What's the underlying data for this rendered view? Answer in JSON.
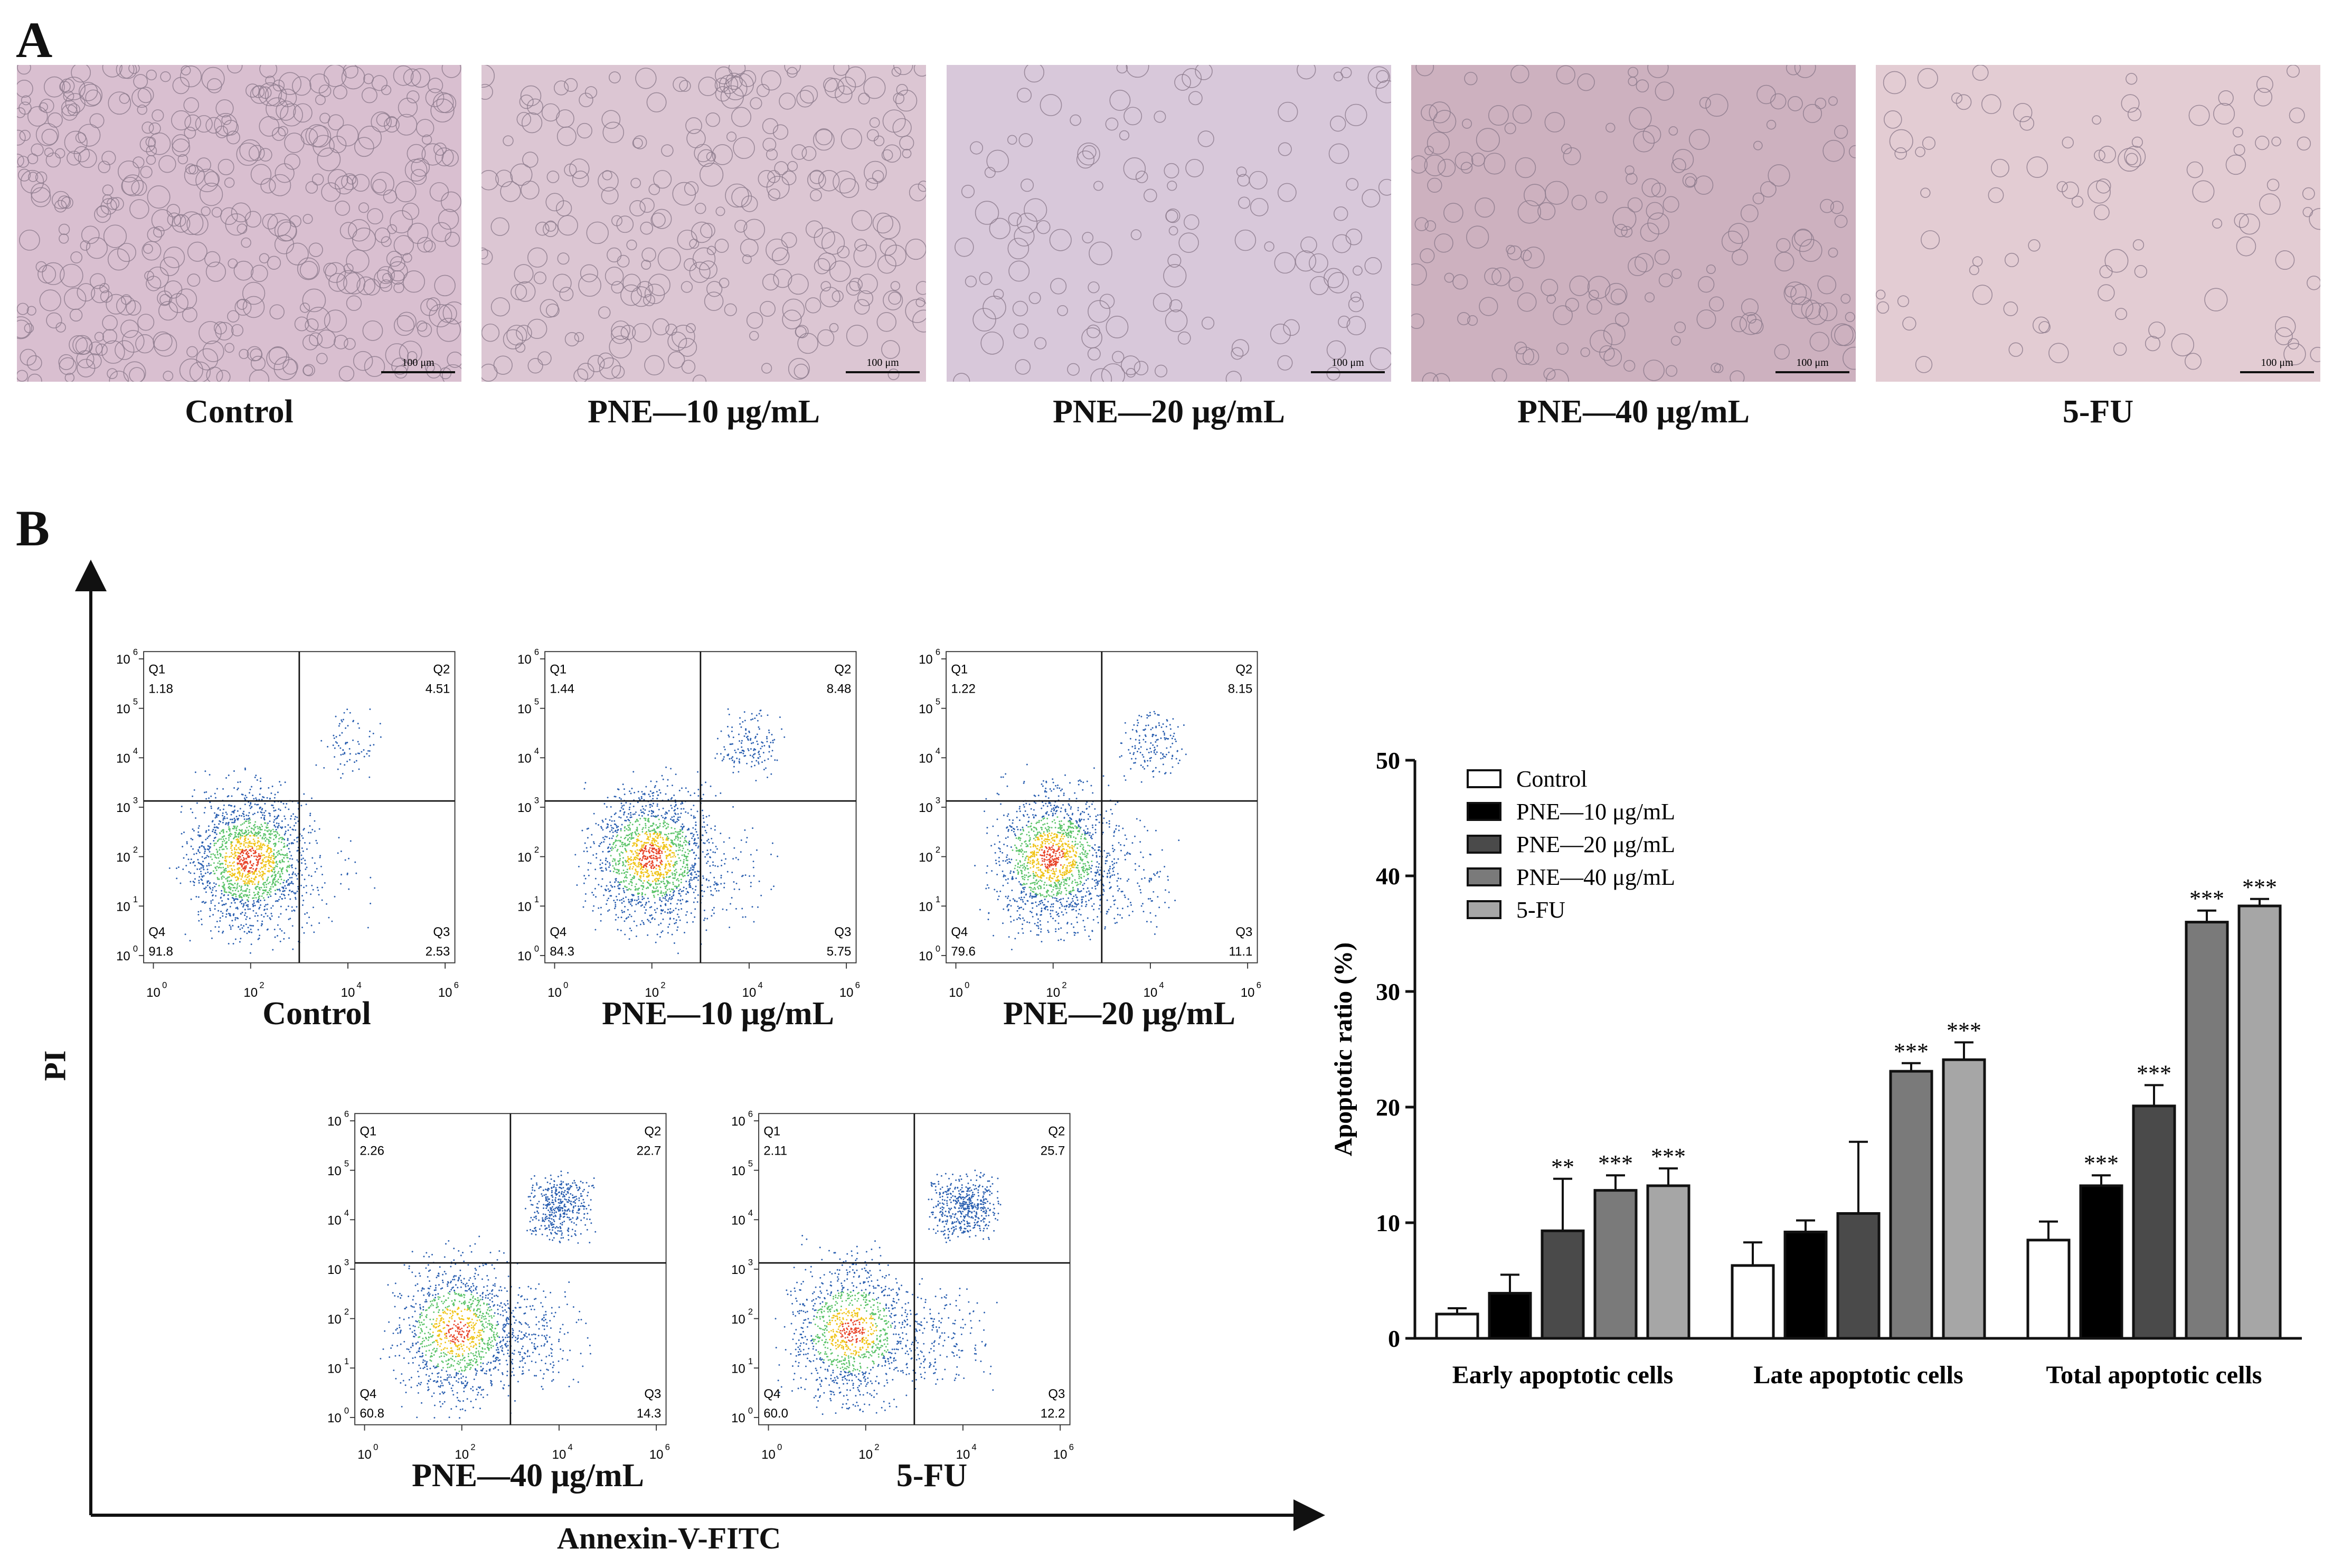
{
  "panels": {
    "a": "A",
    "b": "B"
  },
  "micrographs": [
    {
      "label": "Control",
      "scale_bar": "100 μm",
      "density": 0.95
    },
    {
      "label": "PNE—10 μg/mL",
      "scale_bar": "100 μm",
      "density": 0.6
    },
    {
      "label": "PNE—20 μg/mL",
      "scale_bar": "100 μm",
      "density": 0.25
    },
    {
      "label": "PNE—40 μg/mL",
      "scale_bar": "100 μm",
      "density": 0.35
    },
    {
      "label": "5-FU",
      "scale_bar": "100 μm",
      "density": 0.15
    }
  ],
  "flow_axes": {
    "x_title": "Annexin-V-FITC",
    "y_title": "PI"
  },
  "flow_plots": [
    {
      "label": "Control",
      "q1": "1.18",
      "q2": "4.51",
      "q3": "2.53",
      "q4": "91.8"
    },
    {
      "label": "PNE—10 μg/mL",
      "q1": "1.44",
      "q2": "8.48",
      "q3": "5.75",
      "q4": "84.3"
    },
    {
      "label": "PNE—20 μg/mL",
      "q1": "1.22",
      "q2": "8.15",
      "q3": "11.1",
      "q4": "79.6"
    },
    {
      "label": "PNE—40 μg/mL",
      "q1": "2.26",
      "q2": "22.7",
      "q3": "14.3",
      "q4": "60.8"
    },
    {
      "label": "5-FU",
      "q1": "2.11",
      "q2": "25.7",
      "q3": "12.2",
      "q4": "60.0"
    }
  ],
  "quadrant_names": [
    "Q1",
    "Q2",
    "Q3",
    "Q4"
  ],
  "flow_ticks": [
    "10",
    "10",
    "10",
    "10"
  ],
  "flow_tick_exp": [
    "0",
    "2",
    "4",
    "6"
  ],
  "flow_y_ticks_exp": [
    "0",
    "1",
    "2",
    "3",
    "4",
    "5",
    "6"
  ],
  "chart_data": {
    "type": "bar",
    "categories": [
      "Early apoptotic cells",
      "Late apoptotic cells",
      "Total apoptotic cells"
    ],
    "ylabel": "Apoptotic ratio (%)",
    "ylim": [
      0,
      50
    ],
    "yticks": [
      0,
      10,
      20,
      30,
      40,
      50
    ],
    "legend_position": "top-left",
    "series": [
      {
        "name": "Control",
        "color": "#ffffff",
        "values": [
          2.1,
          6.3,
          8.5
        ],
        "errors": [
          0.5,
          2.0,
          1.6
        ],
        "sig": [
          "",
          "",
          ""
        ]
      },
      {
        "name": "PNE—10 μg/mL",
        "color": "#000000",
        "values": [
          3.9,
          9.2,
          13.2
        ],
        "errors": [
          1.6,
          1.0,
          0.9
        ],
        "sig": [
          "",
          "",
          "***"
        ]
      },
      {
        "name": "PNE—20 μg/mL",
        "color": "#4a4a4a",
        "values": [
          9.3,
          10.8,
          20.1
        ],
        "errors": [
          4.5,
          6.2,
          1.8
        ],
        "sig": [
          "**",
          "",
          "***"
        ]
      },
      {
        "name": "PNE—40 μg/mL",
        "color": "#7a7a7a",
        "values": [
          12.8,
          23.1,
          36.0
        ],
        "errors": [
          1.3,
          0.7,
          1.0
        ],
        "sig": [
          "***",
          "***",
          "***"
        ]
      },
      {
        "name": "5-FU",
        "color": "#a6a6a6",
        "values": [
          13.2,
          24.1,
          37.4
        ],
        "errors": [
          1.5,
          1.5,
          0.6
        ],
        "sig": [
          "***",
          "***",
          "***"
        ]
      }
    ]
  }
}
